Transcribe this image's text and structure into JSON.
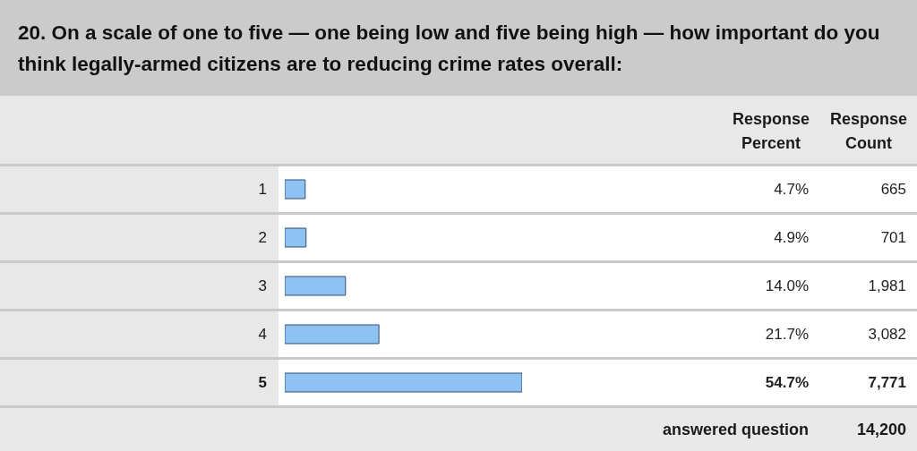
{
  "chart_data": {
    "type": "bar",
    "orientation": "horizontal",
    "title": "20. On a scale of one to five — one being low and five being high — how important do you think legally-armed citizens are to reducing crime rates overall:",
    "categories": [
      "1",
      "2",
      "3",
      "4",
      "5"
    ],
    "values": [
      4.7,
      4.9,
      14.0,
      21.7,
      54.7
    ],
    "color": "#8ec2f2",
    "value_labels": [
      "4.7%",
      "4.9%",
      "14.0%",
      "21.7%",
      "54.7%"
    ],
    "annotations": [
      "Response Percent",
      "Response Count",
      "665",
      "701",
      "1,981",
      "3,082",
      "7,771",
      "answered question",
      "14,200"
    ]
  }
}
